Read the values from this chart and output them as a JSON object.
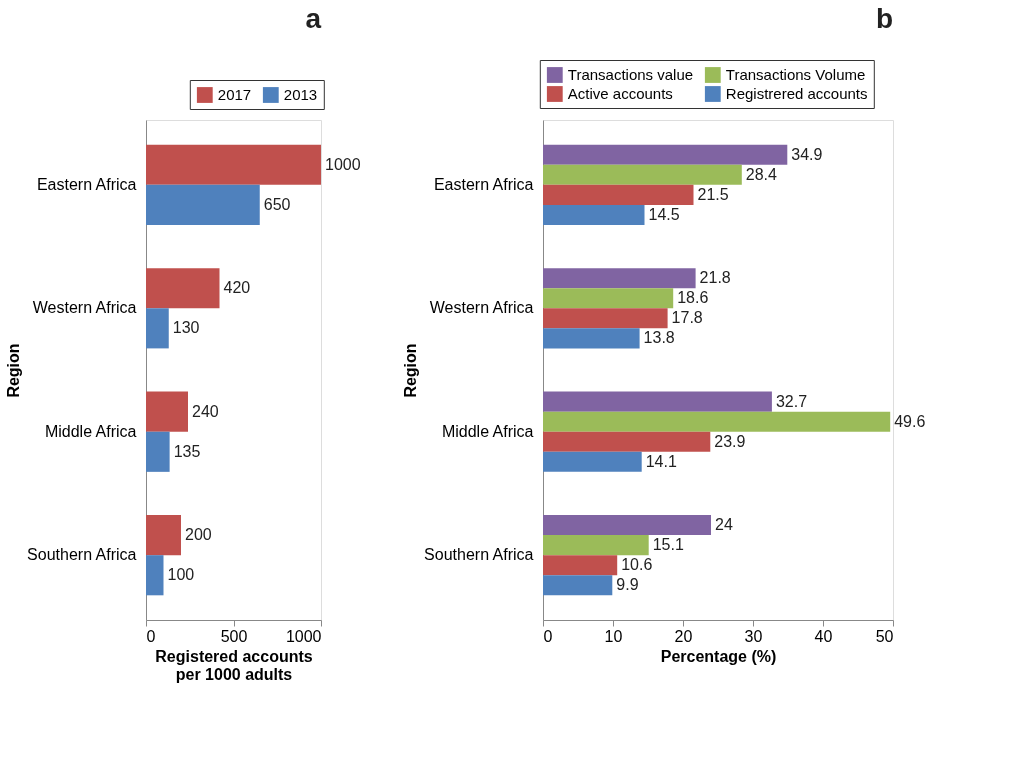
{
  "chart_data": [
    {
      "type": "bar",
      "orientation": "horizontal",
      "title": "a",
      "xlabel": "Registered accounts\nper 1000 adults",
      "ylabel": "Region",
      "categories": [
        "Eastern Africa",
        "Western Africa",
        "Middle Africa",
        "Southern Africa"
      ],
      "series": [
        {
          "name": "2017",
          "color": "#c0504d",
          "values": [
            1000,
            420,
            240,
            200
          ]
        },
        {
          "name": "2013",
          "color": "#4f81bd",
          "values": [
            650,
            130,
            135,
            100
          ]
        }
      ],
      "xlim": [
        0,
        1000
      ],
      "xticks": [
        0,
        500,
        1000
      ],
      "data_labels": true,
      "legend": "top right",
      "grid": false
    },
    {
      "type": "bar",
      "orientation": "horizontal",
      "title": "b",
      "xlabel": "Percentage (%)",
      "ylabel": "Region",
      "categories": [
        "Eastern Africa",
        "Western Africa",
        "Middle Africa",
        "Southern Africa"
      ],
      "series": [
        {
          "name": "Transactions value",
          "color": "#8064a2",
          "values": [
            34.9,
            21.8,
            32.7,
            24
          ]
        },
        {
          "name": "Transactions Volume",
          "color": "#9bbb59",
          "values": [
            28.4,
            18.6,
            49.6,
            15.1
          ]
        },
        {
          "name": "Active accounts",
          "color": "#c0504d",
          "values": [
            21.5,
            17.8,
            23.9,
            10.6
          ]
        },
        {
          "name": "Registrered accounts",
          "color": "#4f81bd",
          "values": [
            14.5,
            13.8,
            14.1,
            9.9
          ]
        }
      ],
      "xlim": [
        0,
        50
      ],
      "xticks": [
        0,
        10,
        20,
        30,
        40,
        50
      ],
      "data_labels": true,
      "legend": "top right",
      "grid": false
    }
  ]
}
